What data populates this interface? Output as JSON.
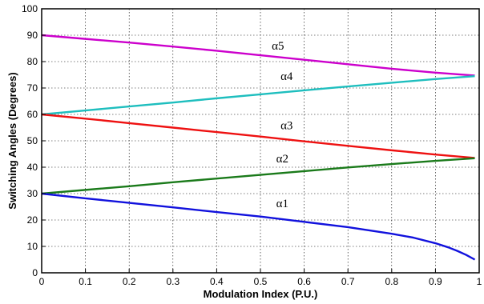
{
  "chart_data": {
    "type": "line",
    "title": "",
    "xlabel": "Modulation Index (P.U.)",
    "ylabel": "Switching Angles (Degrees)",
    "xlim": [
      0,
      1
    ],
    "ylim": [
      0,
      100
    ],
    "xticks": [
      "0",
      "0.1",
      "0.2",
      "0.3",
      "0.4",
      "0.5",
      "0.6",
      "0.7",
      "0.8",
      "0.9",
      "1"
    ],
    "yticks": [
      "0",
      "10",
      "20",
      "30",
      "40",
      "50",
      "60",
      "70",
      "80",
      "90",
      "100"
    ],
    "grid": true,
    "legend": "inline labels",
    "series": [
      {
        "name": "α5",
        "color": "#cc00cc",
        "x": [
          0,
          0.1,
          0.2,
          0.3,
          0.4,
          0.5,
          0.6,
          0.7,
          0.8,
          0.9,
          0.99
        ],
        "y": [
          90,
          88.6,
          87.2,
          85.7,
          84.1,
          82.4,
          80.7,
          79.0,
          77.3,
          75.8,
          74.7
        ]
      },
      {
        "name": "α4",
        "color": "#1ebebe",
        "x": [
          0,
          0.1,
          0.2,
          0.3,
          0.4,
          0.5,
          0.6,
          0.7,
          0.8,
          0.9,
          0.99
        ],
        "y": [
          60,
          61.5,
          63.0,
          64.5,
          66.1,
          67.6,
          69.1,
          70.6,
          72.0,
          73.4,
          74.5
        ]
      },
      {
        "name": "α3",
        "color": "#ee1111",
        "x": [
          0,
          0.1,
          0.2,
          0.3,
          0.4,
          0.5,
          0.6,
          0.7,
          0.8,
          0.9,
          0.99
        ],
        "y": [
          60,
          58.4,
          56.7,
          55.0,
          53.3,
          51.6,
          49.8,
          48.1,
          46.4,
          44.8,
          43.5
        ]
      },
      {
        "name": "α2",
        "color": "#1a7a1a",
        "x": [
          0,
          0.1,
          0.2,
          0.3,
          0.4,
          0.5,
          0.6,
          0.7,
          0.8,
          0.9,
          0.99
        ],
        "y": [
          30,
          31.4,
          32.8,
          34.3,
          35.7,
          37.1,
          38.5,
          39.9,
          41.2,
          42.4,
          43.4
        ]
      },
      {
        "name": "α1",
        "color": "#1111dd",
        "x": [
          0,
          0.1,
          0.2,
          0.3,
          0.4,
          0.5,
          0.6,
          0.7,
          0.8,
          0.85,
          0.9,
          0.93,
          0.95,
          0.97,
          0.99
        ],
        "y": [
          30,
          28.2,
          26.5,
          24.8,
          23.0,
          21.3,
          19.3,
          17.3,
          14.8,
          13.3,
          11.2,
          9.6,
          8.3,
          6.8,
          5.0
        ]
      }
    ],
    "annotations": [
      {
        "text": "α5",
        "x": 0.54,
        "y": 84.6
      },
      {
        "text": "α4",
        "x": 0.56,
        "y": 73.0
      },
      {
        "text": "α3",
        "x": 0.56,
        "y": 54.4
      },
      {
        "text": "α2",
        "x": 0.55,
        "y": 41.8
      },
      {
        "text": "α1",
        "x": 0.55,
        "y": 24.8
      }
    ]
  }
}
